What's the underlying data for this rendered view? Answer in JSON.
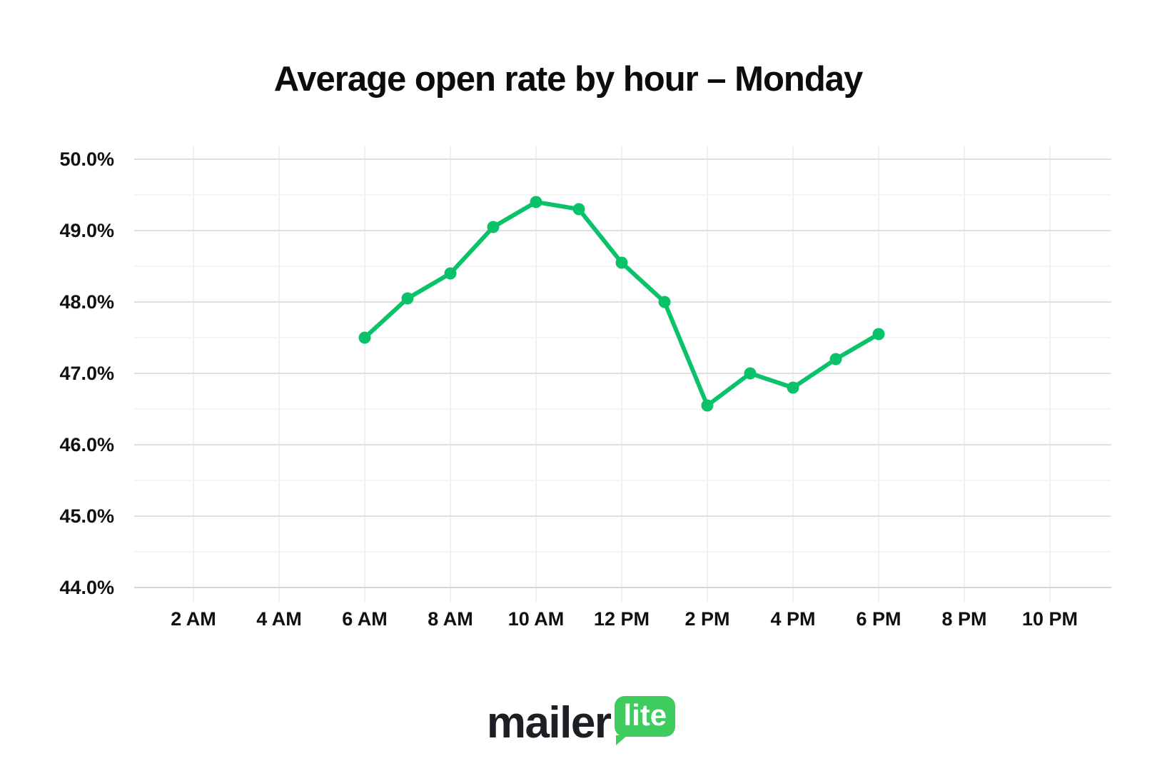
{
  "page": {
    "background": "#ffffff"
  },
  "colors": {
    "line": "#09c269",
    "grid_major": "#e0e0e0",
    "grid_minor": "#f2f2f2",
    "grid_vertical": "#ededed",
    "axis": "#d6d6d6",
    "tick_text": "#101010",
    "title_text": "#0c0c0c",
    "logo_badge": "#3ecc5f"
  },
  "chart_data": {
    "type": "line",
    "title": "Average open rate by hour – Monday",
    "xlabel": "",
    "ylabel": "",
    "ylim": [
      44.0,
      50.0
    ],
    "y_major_step": 1.0,
    "y_minor_step": 0.5,
    "grid": true,
    "legend_position": "none",
    "series": [
      {
        "name": "Average open rate",
        "color": "#09c269",
        "points": [
          {
            "hour": 6,
            "time": "6 AM",
            "value": 47.5
          },
          {
            "hour": 7,
            "time": "7 AM",
            "value": 48.05
          },
          {
            "hour": 8,
            "time": "8 AM",
            "value": 48.4
          },
          {
            "hour": 9,
            "time": "9 AM",
            "value": 49.05
          },
          {
            "hour": 10,
            "time": "10 AM",
            "value": 49.4
          },
          {
            "hour": 11,
            "time": "11 AM",
            "value": 49.3
          },
          {
            "hour": 12,
            "time": "12 PM",
            "value": 48.55
          },
          {
            "hour": 13,
            "time": "1 PM",
            "value": 48.0
          },
          {
            "hour": 14,
            "time": "2 PM",
            "value": 46.55
          },
          {
            "hour": 15,
            "time": "3 PM",
            "value": 47.0
          },
          {
            "hour": 16,
            "time": "4 PM",
            "value": 46.8
          },
          {
            "hour": 17,
            "time": "5 PM",
            "value": 47.2
          },
          {
            "hour": 18,
            "time": "6 PM",
            "value": 47.55
          }
        ]
      }
    ],
    "x_ticks": [
      {
        "hour": 2,
        "label": "2 AM"
      },
      {
        "hour": 4,
        "label": "4 AM"
      },
      {
        "hour": 6,
        "label": "6 AM"
      },
      {
        "hour": 8,
        "label": "8 AM"
      },
      {
        "hour": 10,
        "label": "10 AM"
      },
      {
        "hour": 12,
        "label": "12 PM"
      },
      {
        "hour": 14,
        "label": "2 PM"
      },
      {
        "hour": 16,
        "label": "4 PM"
      },
      {
        "hour": 18,
        "label": "6 PM"
      },
      {
        "hour": 20,
        "label": "8 PM"
      },
      {
        "hour": 22,
        "label": "10 PM"
      }
    ],
    "y_ticks": [
      {
        "value": 50.0,
        "label": "50.0%"
      },
      {
        "value": 49.0,
        "label": "49.0%"
      },
      {
        "value": 48.0,
        "label": "48.0%"
      },
      {
        "value": 47.0,
        "label": "47.0%"
      },
      {
        "value": 46.0,
        "label": "46.0%"
      },
      {
        "value": 45.0,
        "label": "45.0%"
      },
      {
        "value": 44.0,
        "label": "44.0%"
      }
    ]
  },
  "footer": {
    "logo_text": "mailer",
    "logo_badge": "lite",
    "logo_badge_color": "#3ecc5f"
  }
}
